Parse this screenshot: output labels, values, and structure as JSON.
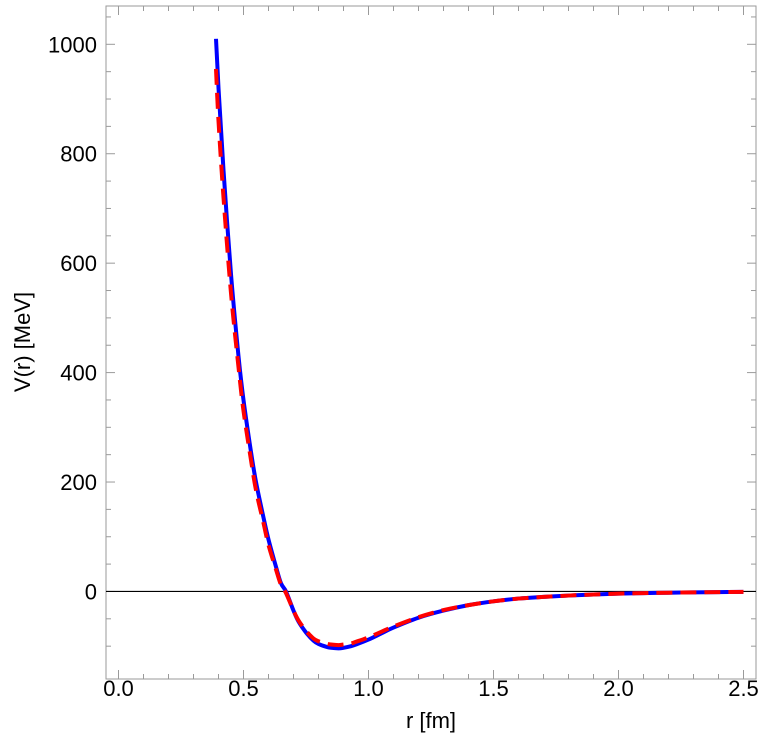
{
  "chart_data": {
    "type": "line",
    "title": "",
    "xlabel": "r [fm]",
    "ylabel": "V(r) [MeV]",
    "xlim": [
      -0.05,
      2.55
    ],
    "ylim": [
      -160,
      1070
    ],
    "x_ticks": [
      0.0,
      0.5,
      1.0,
      1.5,
      2.0,
      2.5
    ],
    "x_tick_labels": [
      "0.0",
      "0.5",
      "1.0",
      "1.5",
      "2.0",
      "2.5"
    ],
    "y_ticks": [
      0,
      200,
      400,
      600,
      800,
      1000
    ],
    "y_tick_labels": [
      "0",
      "200",
      "400",
      "600",
      "800",
      "1000"
    ],
    "zero_line": true,
    "grid": false,
    "series": [
      {
        "style": "solid",
        "color": "#0000ff",
        "x": [
          0.39,
          0.4,
          0.42,
          0.45,
          0.48,
          0.5,
          0.53,
          0.55,
          0.58,
          0.6,
          0.63,
          0.65,
          0.67,
          0.7,
          0.72,
          0.75,
          0.78,
          0.8,
          0.83,
          0.85,
          0.88,
          0.9,
          0.93,
          0.95,
          1.0,
          1.05,
          1.1,
          1.2,
          1.3,
          1.4,
          1.5,
          1.6,
          1.7,
          1.8,
          1.9,
          2.0,
          2.1,
          2.2,
          2.3,
          2.4,
          2.5
        ],
        "y": [
          1010,
          920,
          770,
          580,
          430,
          350,
          255,
          200,
          135,
          95,
          45,
          15,
          0,
          -35,
          -55,
          -75,
          -90,
          -96,
          -101,
          -103,
          -104,
          -103,
          -100,
          -97,
          -88,
          -77,
          -66,
          -48,
          -35,
          -25,
          -18,
          -13,
          -10,
          -7.5,
          -5.5,
          -4,
          -3,
          -2.3,
          -1.7,
          -1.2,
          -0.8
        ]
      },
      {
        "style": "dashed",
        "color": "#ff0000",
        "x": [
          0.39,
          0.4,
          0.42,
          0.45,
          0.48,
          0.5,
          0.53,
          0.55,
          0.58,
          0.6,
          0.63,
          0.65,
          0.67,
          0.7,
          0.72,
          0.75,
          0.78,
          0.8,
          0.83,
          0.85,
          0.88,
          0.9,
          0.93,
          0.95,
          1.0,
          1.05,
          1.1,
          1.2,
          1.3,
          1.4,
          1.5,
          1.6,
          1.7,
          1.8,
          1.9,
          2.0,
          2.1,
          2.2,
          2.3,
          2.4,
          2.5
        ],
        "y": [
          955,
          860,
          720,
          545,
          410,
          330,
          240,
          185,
          125,
          85,
          40,
          12,
          -3,
          -35,
          -53,
          -72,
          -86,
          -91,
          -95,
          -97,
          -98,
          -97,
          -95,
          -92,
          -84,
          -74,
          -64,
          -47,
          -34,
          -25,
          -18,
          -13,
          -10,
          -7.5,
          -5.5,
          -4,
          -3,
          -2.3,
          -1.7,
          -1.2,
          -0.8
        ]
      }
    ]
  }
}
